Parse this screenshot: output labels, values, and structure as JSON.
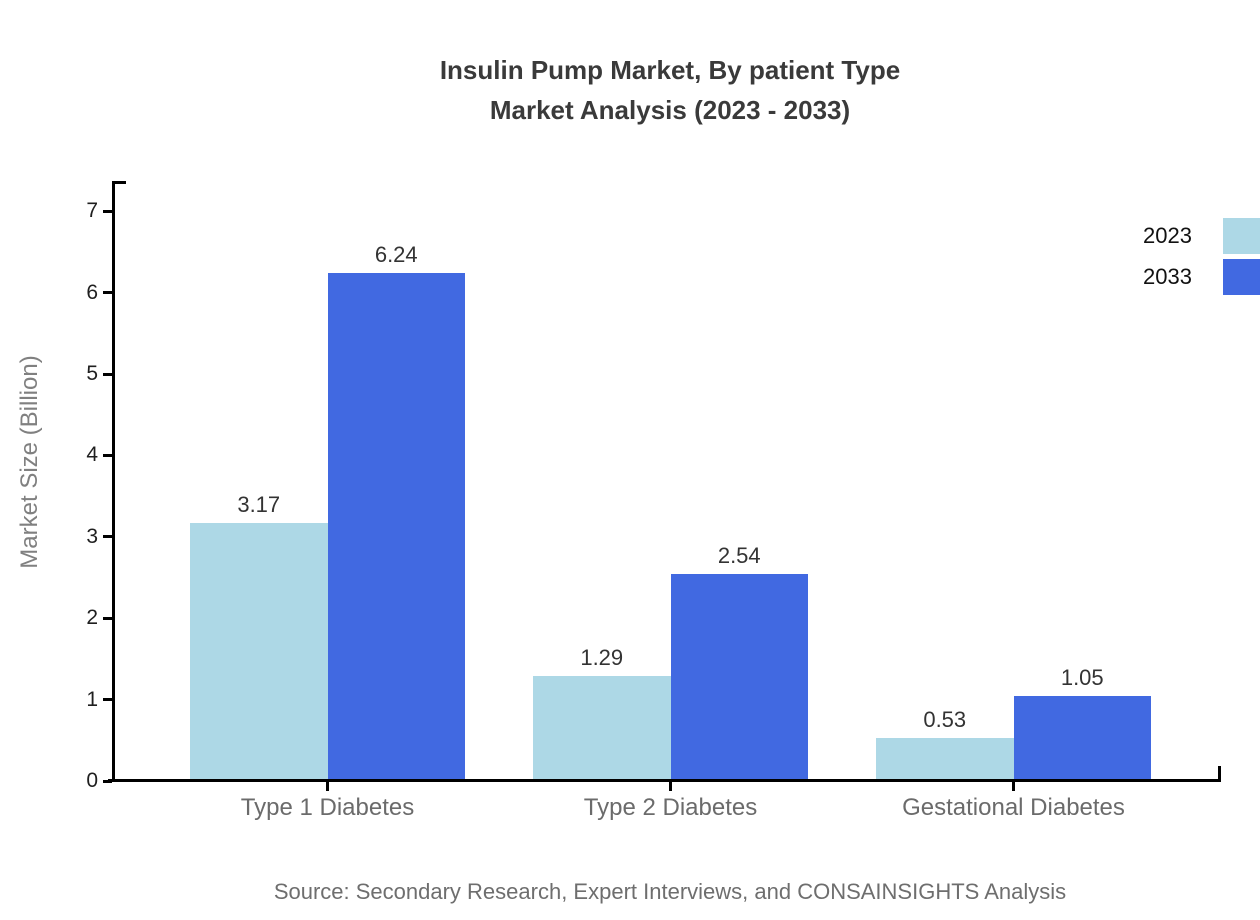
{
  "title": {
    "line1": "Insulin Pump Market, By patient Type",
    "line2": "Market Analysis (2023 - 2033)"
  },
  "source_note": "Source: Secondary Research, Expert Interviews, and CONSAINSIGHTS Analysis",
  "chart_data": {
    "type": "bar",
    "title": "Insulin Pump Market, By patient Type Market Analysis (2023 - 2033)",
    "categories": [
      "Type 1 Diabetes",
      "Type 2 Diabetes",
      "Gestational Diabetes"
    ],
    "series": [
      {
        "name": "2023",
        "color": "#ADD8E6",
        "values": [
          3.17,
          1.29,
          0.53
        ]
      },
      {
        "name": "2033",
        "color": "#4169E1",
        "values": [
          6.24,
          2.54,
          1.05
        ]
      }
    ],
    "value_labels": [
      "3.17",
      "6.24",
      "1.29",
      "2.54",
      "0.53",
      "1.05"
    ],
    "xlabel": "",
    "ylabel": "Market Size (Billion)",
    "ylim": [
      0,
      7.35
    ],
    "yticks": [
      0,
      1,
      2,
      3,
      4,
      5,
      6,
      7
    ],
    "grid": false,
    "legend_position": "top-right",
    "axis_color": "#000000",
    "background_color": "#ffffff"
  }
}
